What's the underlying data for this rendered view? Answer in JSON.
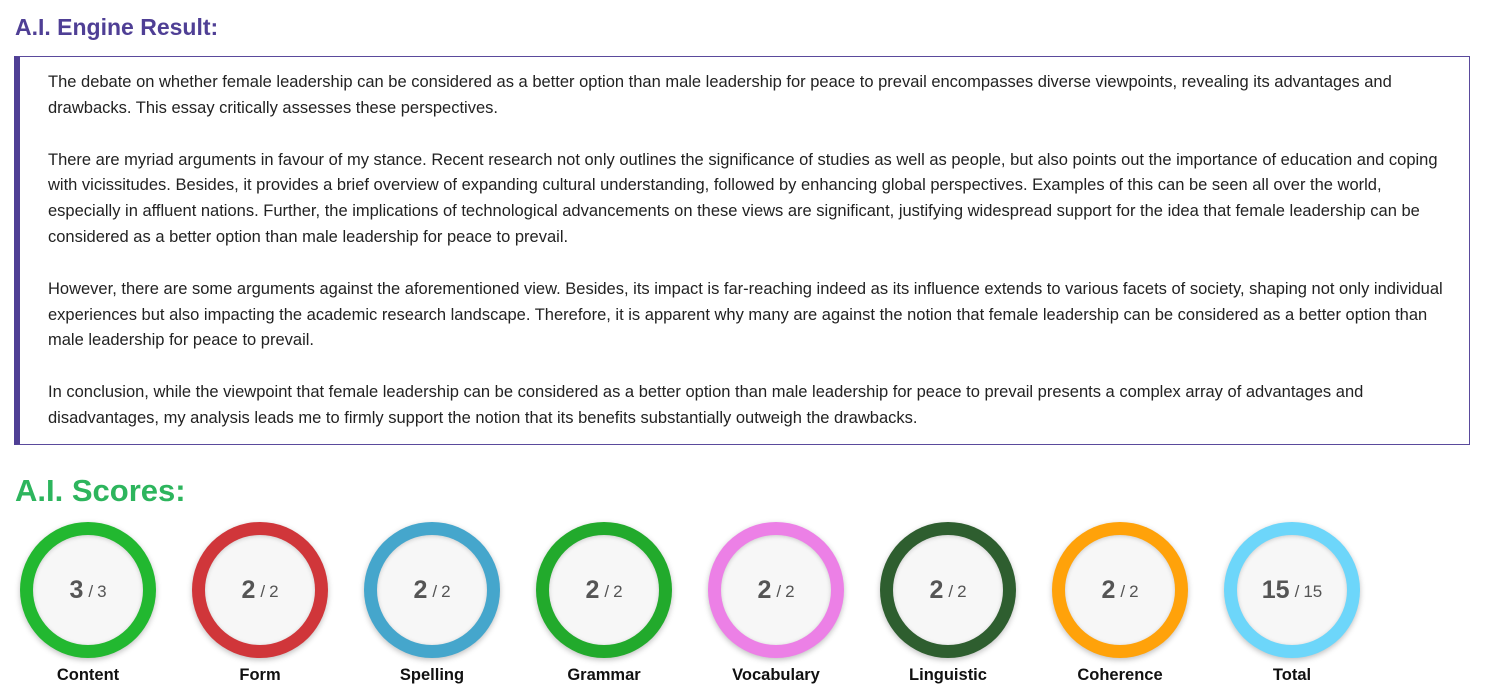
{
  "result": {
    "title": "A.I. Engine Result:",
    "paragraphs": [
      "The debate on whether female leadership can be considered as a better option than male leadership for peace to prevail encompasses diverse viewpoints, revealing its advantages and drawbacks. This essay critically assesses these perspectives.",
      "There are myriad arguments in favour of my stance. Recent research not only outlines the significance of studies as well as people, but also points out the importance of education and coping with vicissitudes. Besides, it provides a brief overview of expanding cultural understanding, followed by enhancing global perspectives. Examples of this can be seen all over the world, especially in affluent nations. Further, the implications of technological advancements on these views are significant, justifying widespread support for the idea that female leadership can be considered as a better option than male leadership for peace to prevail.",
      "However, there are some arguments against the aforementioned view. Besides, its impact is far-reaching indeed as its influence extends to various facets of society, shaping not only individual experiences but also impacting the academic research landscape. Therefore, it is apparent why many are against the notion that female leadership can be considered as a better option than male leadership for peace to prevail.",
      "In conclusion, while the viewpoint that female leadership can be considered as a better option than male leadership for peace to prevail presents a complex array of advantages and disadvantages, my analysis leads me to firmly support the notion that its benefits substantially outweigh the drawbacks."
    ]
  },
  "scores": {
    "title": "A.I. Scores:",
    "separator": "/",
    "items": [
      {
        "label": "Content",
        "value": "3",
        "max": "3",
        "color": "#22b830"
      },
      {
        "label": "Form",
        "value": "2",
        "max": "2",
        "color": "#d0363a"
      },
      {
        "label": "Spelling",
        "value": "2",
        "max": "2",
        "color": "#45a6cc"
      },
      {
        "label": "Grammar",
        "value": "2",
        "max": "2",
        "color": "#22aa2c"
      },
      {
        "label": "Vocabulary",
        "value": "2",
        "max": "2",
        "color": "#ec80e6"
      },
      {
        "label": "Linguistic",
        "value": "2",
        "max": "2",
        "color": "#2e5e2f"
      },
      {
        "label": "Coherence",
        "value": "2",
        "max": "2",
        "color": "#ffa20a"
      },
      {
        "label": "Total",
        "value": "15",
        "max": "15",
        "color": "#6dd6fa"
      }
    ]
  }
}
